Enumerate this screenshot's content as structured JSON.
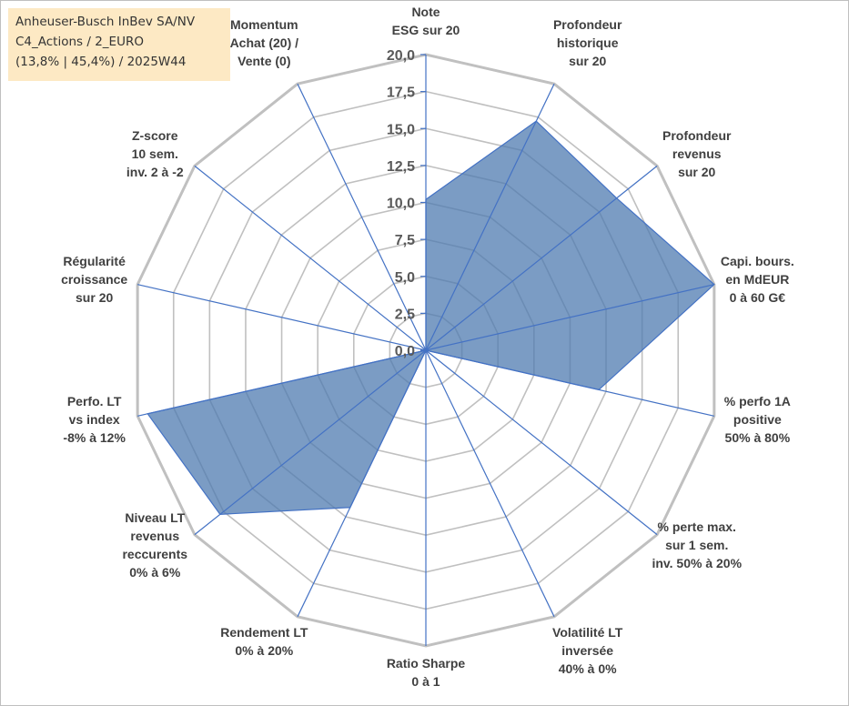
{
  "info": {
    "line1": "Anheuser-Busch InBev SA/NV",
    "line2": "C4_Actions / 2_EURO",
    "line3": "(13,8% | 45,4%) / 2025W44"
  },
  "colors": {
    "fill": "#4f7bb0",
    "stroke": "#4472c4",
    "grid": "#c0c0c0",
    "spoke": "#4472c4"
  },
  "chart_data": {
    "type": "radar",
    "title": "",
    "range": [
      0,
      20
    ],
    "tick_step": 2.5,
    "tick_labels": [
      "0,0",
      "2,5",
      "5,0",
      "7,5",
      "10,0",
      "12,5",
      "15,0",
      "17,5",
      "20,0"
    ],
    "axes": [
      {
        "label": [
          "Note",
          "ESG sur 20"
        ]
      },
      {
        "label": [
          "Profondeur",
          "historique",
          "sur 20"
        ]
      },
      {
        "label": [
          "Profondeur",
          "revenus",
          "sur 20"
        ]
      },
      {
        "label": [
          "Capi. bours.",
          "en MdEUR",
          "0 à 60 G€"
        ]
      },
      {
        "label": [
          "% perfo 1A",
          "positive",
          "50% à 80%"
        ]
      },
      {
        "label": [
          "% perte max.",
          "sur 1 sem.",
          "inv. 50% à 20%"
        ]
      },
      {
        "label": [
          "Volatilité LT",
          "inversée",
          "40% à 0%"
        ]
      },
      {
        "label": [
          "Ratio Sharpe",
          "0 à 1"
        ]
      },
      {
        "label": [
          "Rendement LT",
          "0% à 20%"
        ]
      },
      {
        "label": [
          "Niveau LT",
          "revenus",
          "reccurents",
          "0% à 6%"
        ]
      },
      {
        "label": [
          "Perfo. LT",
          "vs index",
          "-8% à 12%"
        ]
      },
      {
        "label": [
          "Régularité",
          "croissance",
          "sur 20"
        ]
      },
      {
        "label": [
          "Z-score",
          "10 sem.",
          "inv. 2 à -2"
        ]
      },
      {
        "label": [
          "Momentum",
          "Achat (20) /",
          "Vente (0)"
        ]
      }
    ],
    "series": [
      {
        "name": "Anheuser-Busch InBev SA/NV",
        "values": [
          10.2,
          17.2,
          16.5,
          20.0,
          12.0,
          0.0,
          0.0,
          0.0,
          11.8,
          17.8,
          19.3,
          0.0,
          0.0,
          0.0
        ]
      }
    ]
  }
}
